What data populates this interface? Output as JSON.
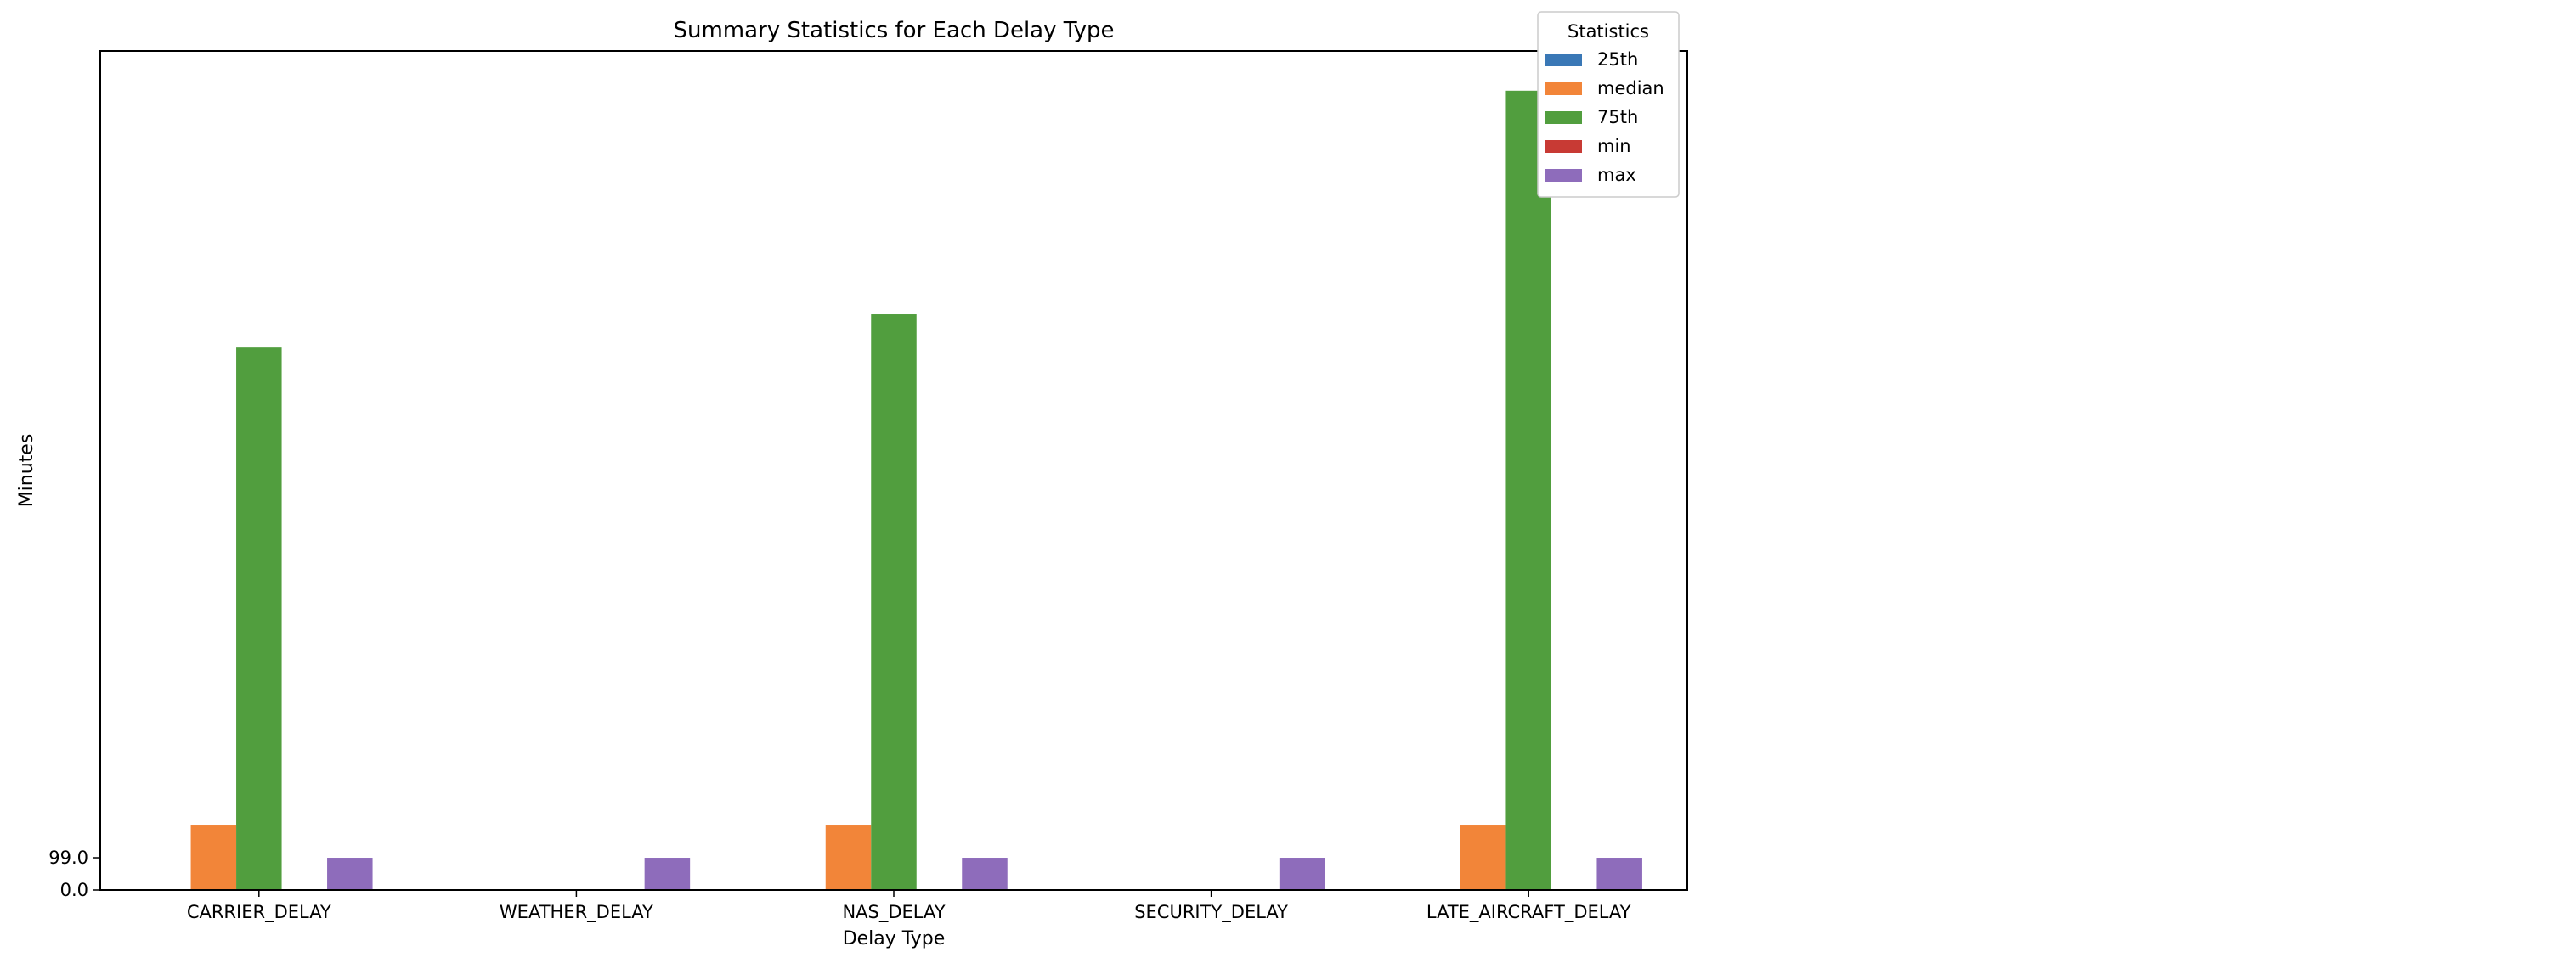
{
  "chart_data": {
    "type": "bar",
    "title": "Summary Statistics for Each Delay Type",
    "xlabel": "Delay Type",
    "ylabel": "Minutes",
    "categories": [
      "CARRIER_DELAY",
      "WEATHER_DELAY",
      "NAS_DELAY",
      "SECURITY_DELAY",
      "LATE_AIRCRAFT_DELAY"
    ],
    "series": [
      {
        "name": "25th",
        "color": "#3a78b6",
        "values": [
          0,
          0,
          0,
          0,
          0
        ]
      },
      {
        "name": "median",
        "color": "#f28539",
        "values": [
          198,
          0,
          198,
          0,
          198
        ]
      },
      {
        "name": "75th",
        "color": "#519e3e",
        "values": [
          1665,
          0,
          1767,
          0,
          2453
        ]
      },
      {
        "name": "min",
        "color": "#c83a34",
        "values": [
          0,
          0,
          0,
          0,
          0
        ]
      },
      {
        "name": "max",
        "color": "#8e6cbb",
        "values": [
          99,
          99,
          99,
          99,
          99
        ]
      }
    ],
    "yticks": [
      0.0,
      99.0
    ],
    "ytick_labels": [
      "0.0",
      "99.0"
    ],
    "ylim": [
      0,
      2575
    ],
    "grid": false,
    "legend": {
      "title": "Statistics",
      "placement": "top-right"
    }
  }
}
